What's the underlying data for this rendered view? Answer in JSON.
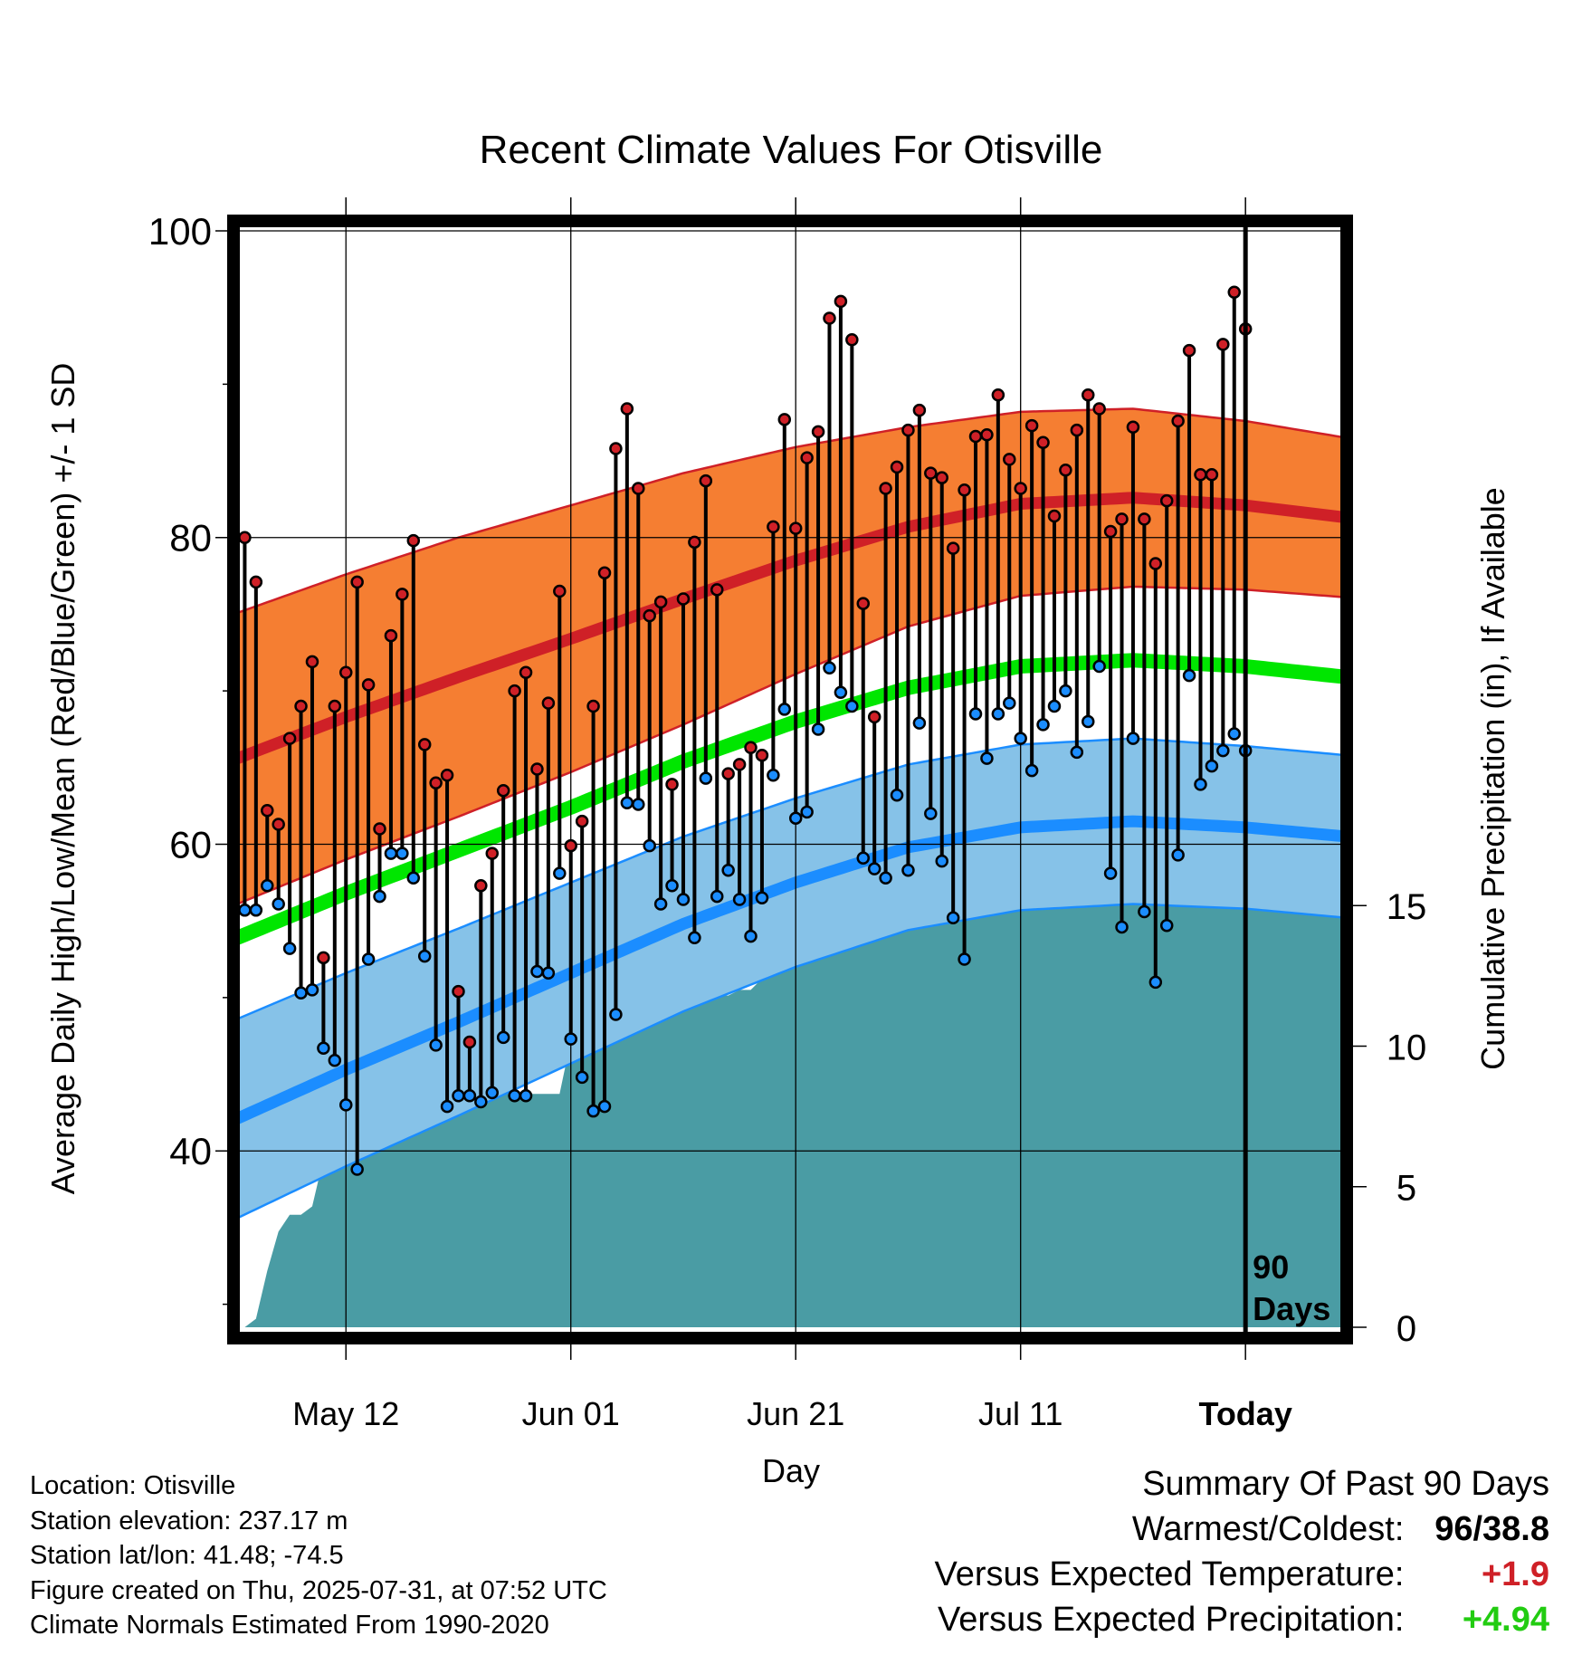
{
  "chart_data": {
    "type": "line",
    "title": "Recent Climate Values For Otisville",
    "xlabel": "Day",
    "ylabel": "Average Daily High/Low/Mean (Red/Blue/Green) +/- 1 SD",
    "y2label": "Cumulative Precipitation (in), If Available",
    "x_ticks": [
      "May 12",
      "Jun 01",
      "Jun 21",
      "Jul 11",
      "Today"
    ],
    "x_range_days": [
      -90,
      9
    ],
    "x_tick_days": [
      -80,
      -60,
      -40,
      -20,
      0
    ],
    "ylim": [
      28.5,
      100
    ],
    "y_ticks": [
      40,
      60,
      80,
      100
    ],
    "y2lim": [
      0,
      39
    ],
    "y2_ticks": [
      0,
      5,
      10,
      15
    ],
    "grid": true,
    "today_marker_label": "90 Days",
    "colors": {
      "high": "#cf2027",
      "high_band": "#f57e32",
      "low": "#1b8dff",
      "low_band": "#86c2e8",
      "mean": "#00e600",
      "precip": "#4a9ca4"
    },
    "normal_high": {
      "x": [
        -90,
        -80,
        -70,
        -60,
        -50,
        -40,
        -30,
        -20,
        -10,
        0,
        9
      ],
      "mean": [
        65.5,
        68.3,
        70.9,
        73.4,
        76.0,
        78.5,
        80.7,
        82.2,
        82.6,
        82.1,
        81.3
      ],
      "sd": [
        9.5,
        9.3,
        9.1,
        8.7,
        8.2,
        7.4,
        6.5,
        6.0,
        5.8,
        5.5,
        5.2
      ]
    },
    "normal_low": {
      "x": [
        -90,
        -80,
        -70,
        -60,
        -50,
        -40,
        -30,
        -20,
        -10,
        0,
        9
      ],
      "mean": [
        42.0,
        45.3,
        48.4,
        51.6,
        54.8,
        57.5,
        59.8,
        61.1,
        61.5,
        61.1,
        60.5
      ],
      "sd": [
        6.5,
        6.3,
        6.1,
        5.9,
        5.7,
        5.5,
        5.4,
        5.4,
        5.4,
        5.3,
        5.3
      ]
    },
    "normal_mean": {
      "x": [
        -90,
        -80,
        -70,
        -60,
        -50,
        -40,
        -30,
        -20,
        -10,
        0,
        9
      ],
      "values": [
        53.8,
        56.8,
        59.6,
        62.4,
        65.4,
        68.0,
        70.2,
        71.6,
        72.0,
        71.6,
        70.9
      ]
    },
    "daily_high": [
      80,
      77.1,
      62.2,
      61.3,
      66.9,
      69,
      71.9,
      52.6,
      69,
      71.2,
      77.1,
      70.4,
      61,
      73.6,
      76.3,
      79.8,
      66.5,
      64,
      64.5,
      50.4,
      47.1,
      57.3,
      59.4,
      63.5,
      70,
      71.2,
      64.9,
      69.2,
      76.5,
      59.9,
      61.5,
      69,
      77.7,
      85.8,
      88.4,
      83.2,
      74.9,
      75.8,
      63.9,
      76,
      79.7,
      83.7,
      76.6,
      64.6,
      65.2,
      66.3,
      65.8,
      80.7,
      87.7,
      80.6,
      85.2,
      86.9,
      94.3,
      95.4,
      92.9,
      75.7,
      68.3,
      83.2,
      84.6,
      87,
      88.3,
      84.2,
      83.9,
      79.3,
      83.1,
      86.6,
      86.7,
      89.3,
      85.1,
      83.2,
      87.3,
      86.2,
      81.4,
      84.4,
      87,
      89.3,
      88.4,
      80.4,
      81.2,
      87.2,
      81.2,
      78.3,
      82.4,
      87.6,
      92.2,
      84.1,
      84.1,
      92.6,
      96,
      93.6
    ],
    "daily_low": [
      55.7,
      55.7,
      57.3,
      56.1,
      53.2,
      50.3,
      50.5,
      46.7,
      45.9,
      43,
      38.8,
      52.5,
      56.6,
      59.4,
      59.4,
      57.8,
      52.7,
      46.9,
      42.9,
      43.6,
      43.6,
      43.2,
      43.8,
      47.4,
      43.6,
      43.6,
      51.7,
      51.6,
      58.1,
      47.3,
      44.8,
      42.6,
      42.9,
      48.9,
      62.7,
      62.6,
      59.9,
      56.1,
      57.3,
      56.4,
      53.9,
      64.3,
      56.6,
      58.3,
      56.4,
      54,
      56.5,
      64.5,
      68.8,
      61.7,
      62.1,
      67.5,
      71.5,
      69.9,
      69,
      59.1,
      58.4,
      57.8,
      63.2,
      58.3,
      67.9,
      62,
      58.9,
      55.2,
      52.5,
      68.5,
      65.6,
      68.5,
      69.2,
      66.9,
      64.8,
      67.8,
      69,
      70,
      66,
      68,
      71.6,
      58.1,
      54.6,
      66.9,
      55.6,
      51,
      54.7,
      59.3,
      71,
      63.9,
      65.1,
      66.1,
      67.2,
      66.1
    ],
    "cumulative_precip": [
      0,
      0.3,
      2.0,
      3.4,
      4.0,
      4.0,
      4.3,
      6.0,
      6.3,
      6.3,
      6.3,
      6.3,
      7.2,
      7.6,
      7.6,
      7.6,
      7.6,
      7.6,
      7.6,
      7.9,
      8.3,
      8.3,
      8.3,
      8.3,
      8.3,
      8.3,
      8.3,
      8.3,
      8.3,
      10.2,
      10.9,
      10.9,
      10.9,
      10.9,
      10.9,
      10.9,
      11.1,
      11.3,
      11.3,
      11.5,
      11.6,
      11.7,
      11.8,
      11.8,
      12.0,
      12.0,
      12.4,
      14.6,
      15.1,
      15.1,
      15.1,
      15.1,
      15.2,
      15.2,
      15.3,
      15.5,
      15.5,
      15.5,
      15.5,
      15.7,
      15.9,
      16.3,
      16.7,
      16.7,
      16.7,
      16.7,
      16.7,
      16.7,
      16.7,
      16.7,
      16.8,
      16.8,
      16.8,
      16.8,
      16.8,
      16.9,
      16.9,
      16.9,
      16.9,
      16.9,
      16.9,
      16.9,
      16.9,
      16.9,
      16.9,
      17.0,
      17.0,
      17.0,
      17.0,
      17.0
    ]
  },
  "info": {
    "location": "Location: Otisville",
    "elevation": "Station elevation: 237.17 m",
    "latlon": "Station lat/lon: 41.48; -74.5",
    "created": "Figure created on Thu, 2025-07-31, at 07:52 UTC",
    "normals": "Climate Normals Estimated From 1990-2020"
  },
  "summary": {
    "title": "Summary Of Past 90 Days",
    "warm_cold_label": "Warmest/Coldest:",
    "warmest": "96",
    "separator": "/",
    "coldest": "38.8",
    "temp_label": "Versus Expected Temperature:",
    "temp_value": "+1.9",
    "temp_color": "#cf2027",
    "precip_label": "Versus Expected Precipitation:",
    "precip_value": "+4.94",
    "precip_color": "#22cc11"
  }
}
